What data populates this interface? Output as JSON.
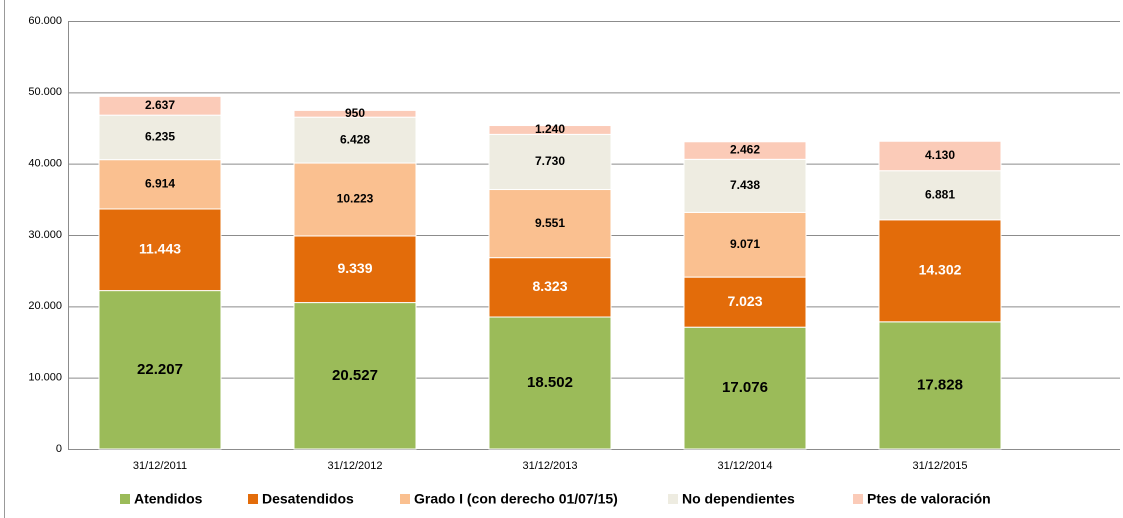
{
  "chart_data": {
    "type": "stacked_bar",
    "categories": [
      "31/12/2011",
      "31/12/2012",
      "31/12/2013",
      "31/12/2014",
      "31/12/2015"
    ],
    "series": [
      {
        "name": "Atendidos",
        "color": "#9bbb59",
        "values": [
          22207,
          20527,
          18502,
          17076,
          17828
        ],
        "value_labels": [
          "22.207",
          "20.527",
          "18.502",
          "17.076",
          "17.828"
        ]
      },
      {
        "name": "Desatendidos",
        "color": "#e36c0a",
        "values": [
          11443,
          9339,
          8323,
          7023,
          14302
        ],
        "value_labels": [
          "11.443",
          "9.339",
          "8.323",
          "7.023",
          "14.302"
        ]
      },
      {
        "name": "Grado I (con derecho 01/07/15)",
        "color": "#fac090",
        "values": [
          6914,
          10223,
          9551,
          9071,
          null
        ],
        "value_labels": [
          "6.914",
          "10.223",
          "9.551",
          "9.071",
          null
        ]
      },
      {
        "name": "No dependientes",
        "color": "#eeece1",
        "values": [
          6235,
          6428,
          7730,
          7438,
          6881
        ],
        "value_labels": [
          "6.235",
          "6.428",
          "7.730",
          "7.438",
          "6.881"
        ]
      },
      {
        "name": "Ptes de valoración",
        "color": "#fbcbb8",
        "values": [
          2637,
          950,
          1240,
          2462,
          4130
        ],
        "value_labels": [
          "2.637",
          "950",
          "1.240",
          "2.462",
          "4.130"
        ]
      }
    ],
    "ylim": [
      0,
      60000
    ],
    "yticks": [
      0,
      {
        "value": 10000,
        "label": "10.000"
      },
      {
        "value": 20000,
        "label": "20.000"
      },
      {
        "value": 30000,
        "label": "30.000"
      },
      {
        "value": 40000,
        "label": "40.000"
      },
      {
        "value": 50000,
        "label": "50.000"
      },
      {
        "value": 60000,
        "label": "60.000"
      }
    ],
    "grid": true,
    "legend": "bottom"
  }
}
